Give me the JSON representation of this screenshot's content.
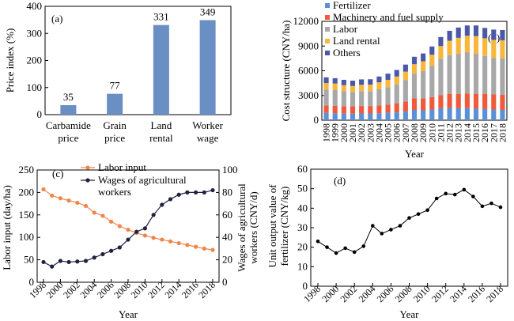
{
  "chart_data": [
    {
      "panel": "(a)",
      "type": "bar",
      "categories": [
        [
          "Carbamide",
          "price"
        ],
        [
          "Grain",
          "price"
        ],
        [
          "Land",
          "rental"
        ],
        [
          "Worker",
          "wage"
        ]
      ],
      "values": [
        35,
        77,
        331,
        349
      ],
      "value_labels": [
        "35",
        "77",
        "331",
        "349"
      ],
      "ylabel": "Price index (%)",
      "ylim": [
        0,
        400
      ],
      "yticks": [
        0,
        100,
        200,
        300,
        400
      ],
      "color": "#6a8fc2"
    },
    {
      "panel": "(b)",
      "type": "bar",
      "stacked": true,
      "categories": [
        "1998",
        "1999",
        "2000",
        "2001",
        "2002",
        "2003",
        "2004",
        "2005",
        "2006",
        "2007",
        "2008",
        "2009",
        "2010",
        "2011",
        "2012",
        "2013",
        "2014",
        "2015",
        "2016",
        "2017",
        "2018"
      ],
      "series": [
        {
          "name": "Fertilizer",
          "color": "#5b8fd6",
          "values": [
            900,
            850,
            800,
            800,
            820,
            820,
            850,
            900,
            950,
            1050,
            1250,
            1200,
            1300,
            1450,
            1500,
            1450,
            1450,
            1400,
            1350,
            1300,
            1250
          ]
        },
        {
          "name": "Machinery and fuel supply",
          "color": "#ef5a3c",
          "values": [
            900,
            900,
            900,
            900,
            900,
            900,
            950,
            1000,
            1100,
            1200,
            1400,
            1450,
            1500,
            1600,
            1700,
            1750,
            1800,
            1800,
            1850,
            1850,
            1850
          ]
        },
        {
          "name": "Labor",
          "color": "#a8a8a8",
          "values": [
            1900,
            1900,
            1800,
            1700,
            1800,
            1800,
            1950,
            2100,
            2300,
            2600,
            3000,
            3300,
            3800,
            4400,
            4700,
            4900,
            5000,
            4900,
            4600,
            4400,
            4400
          ]
        },
        {
          "name": "Land rental",
          "color": "#f6b73c",
          "values": [
            800,
            800,
            750,
            750,
            780,
            800,
            850,
            900,
            950,
            1050,
            1150,
            1200,
            1350,
            1550,
            1750,
            1900,
            2000,
            2100,
            2150,
            2200,
            2200
          ]
        },
        {
          "name": "Others",
          "color": "#4a58a8",
          "values": [
            700,
            650,
            650,
            650,
            650,
            650,
            700,
            750,
            800,
            850,
            900,
            950,
            1000,
            1100,
            1200,
            1250,
            1250,
            1300,
            1250,
            1250,
            1250
          ]
        }
      ],
      "ylabel": "Cost structure (CNY/ha)",
      "xlabel": "Year",
      "ylim": [
        0,
        12000
      ],
      "yticks": [
        0,
        3000,
        6000,
        9000,
        12000
      ],
      "legend": "top-left"
    },
    {
      "panel": "(c)",
      "type": "line",
      "x": [
        1998,
        1999,
        2000,
        2001,
        2002,
        2003,
        2004,
        2005,
        2006,
        2007,
        2008,
        2009,
        2010,
        2011,
        2012,
        2013,
        2014,
        2015,
        2016,
        2017,
        2018
      ],
      "series": [
        {
          "name": "Labor input",
          "axis": "left",
          "color": "#f0854a",
          "values": [
            207,
            193,
            187,
            182,
            177,
            170,
            155,
            148,
            135,
            125,
            117,
            110,
            104,
            99,
            95,
            91,
            87,
            83,
            79,
            75,
            72
          ]
        },
        {
          "name": "Wages of agricultural workers",
          "axis": "right",
          "color": "#1f2340",
          "values": [
            18,
            14,
            19,
            18,
            18.5,
            19,
            22,
            25,
            28,
            31,
            38,
            45,
            48,
            60,
            69,
            74,
            78,
            80,
            80,
            80,
            82
          ]
        }
      ],
      "ylabel": "Labor input (day/ha)",
      "ylabel2": "Wages of agricultural workers (CNY/d)",
      "xlabel": "Year",
      "ylim": [
        0,
        250
      ],
      "yticks": [
        0,
        50,
        100,
        150,
        200,
        250
      ],
      "ylim2": [
        0,
        100
      ],
      "yticks2": [
        0,
        20,
        40,
        60,
        80,
        100
      ],
      "xticks": [
        1998,
        2000,
        2002,
        2004,
        2006,
        2008,
        2010,
        2012,
        2014,
        2016,
        2018
      ],
      "legend": "top-center"
    },
    {
      "panel": "(d)",
      "type": "line",
      "x": [
        1998,
        1999,
        2000,
        2001,
        2002,
        2003,
        2004,
        2005,
        2006,
        2007,
        2008,
        2009,
        2010,
        2011,
        2012,
        2013,
        2014,
        2015,
        2016,
        2017,
        2018
      ],
      "values": [
        23,
        20,
        17,
        19.5,
        17.5,
        20.5,
        31,
        27,
        29,
        31,
        35,
        37,
        39,
        45,
        47.5,
        47,
        49.5,
        46,
        41,
        42.5,
        40.5
      ],
      "ylabel": "Unit output value of fertilizer (CNY/kg)",
      "xlabel": "Year",
      "ylim": [
        0,
        60
      ],
      "yticks": [
        0,
        10,
        20,
        30,
        40,
        50,
        60
      ],
      "xticks": [
        1998,
        2000,
        2002,
        2004,
        2006,
        2008,
        2010,
        2012,
        2014,
        2016,
        2018
      ]
    }
  ]
}
